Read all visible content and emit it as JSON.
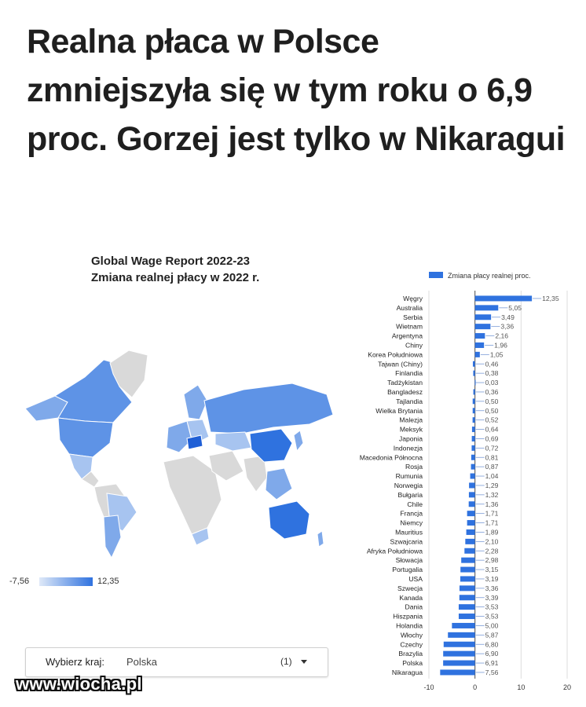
{
  "headline": "Realna płaca w Polsce zmniejszyła się w tym roku o 6,9 proc. Gorzej jest tylko w Nikaragui",
  "map": {
    "title_line1": "Global Wage Report 2022-23",
    "title_line2": "Zmiana realnej płacy w 2022 r.",
    "legend_min": "-7,56",
    "legend_max": "12,35",
    "color_low": "#dfe9f8",
    "color_high": "#2f72df",
    "color_nodata": "#d9d9d9"
  },
  "selector": {
    "label": "Wybierz kraj:",
    "value": "Polska",
    "count": "(1)"
  },
  "watermark": "www.wiocha.pl",
  "chart_data": {
    "type": "bar",
    "orientation": "horizontal",
    "legend": "Zmiana płacy realnej proc.",
    "legend_position": "top",
    "bar_color": "#2f72df",
    "categories": [
      "Węgry",
      "Australia",
      "Serbia",
      "Wietnam",
      "Argentyna",
      "Chiny",
      "Korea Południowa",
      "Tajwan (Chiny)",
      "Finlandia",
      "Tadżykistan",
      "Bangladesz",
      "Tajlandia",
      "Wielka Brytania",
      "Malezja",
      "Meksyk",
      "Japonia",
      "Indonezja",
      "Macedonia Północna",
      "Rosja",
      "Rumunia",
      "Norwegia",
      "Bułgaria",
      "Chile",
      "Francja",
      "Niemcy",
      "Mauritius",
      "Szwajcaria",
      "Afryka Południowa",
      "Słowacja",
      "Portugalia",
      "USA",
      "Szwecja",
      "Kanada",
      "Dania",
      "Hiszpania",
      "Holandia",
      "Włochy",
      "Czechy",
      "Brazylia",
      "Polska",
      "Nikaragua"
    ],
    "values": [
      12.35,
      5.05,
      3.49,
      3.36,
      2.16,
      1.96,
      1.05,
      -0.46,
      -0.38,
      -0.03,
      -0.36,
      -0.5,
      -0.5,
      -0.52,
      -0.64,
      -0.69,
      -0.72,
      -0.81,
      -0.87,
      -1.04,
      -1.29,
      -1.32,
      -1.36,
      -1.71,
      -1.71,
      -1.89,
      -2.1,
      -2.28,
      -2.98,
      -3.15,
      -3.19,
      -3.36,
      -3.39,
      -3.53,
      -3.53,
      -5.0,
      -5.87,
      -6.8,
      -6.9,
      -6.91,
      -7.56
    ],
    "value_labels": [
      "12,35",
      "5,05",
      "3,49",
      "3,36",
      "2,16",
      "1,96",
      "1,05",
      "0,46",
      "0,38",
      "0,03",
      "0,36",
      "0,50",
      "0,50",
      "0,52",
      "0,64",
      "0,69",
      "0,72",
      "0,81",
      "0,87",
      "1,04",
      "1,29",
      "1,32",
      "1,36",
      "1,71",
      "1,71",
      "1,89",
      "2,10",
      "2,28",
      "2,98",
      "3,15",
      "3,19",
      "3,36",
      "3,39",
      "3,53",
      "3,53",
      "5,00",
      "5,87",
      "6,80",
      "6,90",
      "6,91",
      "7,56"
    ],
    "xlim": [
      -10,
      20
    ],
    "xticks": [
      -10,
      0,
      10,
      20
    ],
    "xtick_labels": [
      "-10",
      "0",
      "10",
      "20"
    ],
    "grid": true
  }
}
